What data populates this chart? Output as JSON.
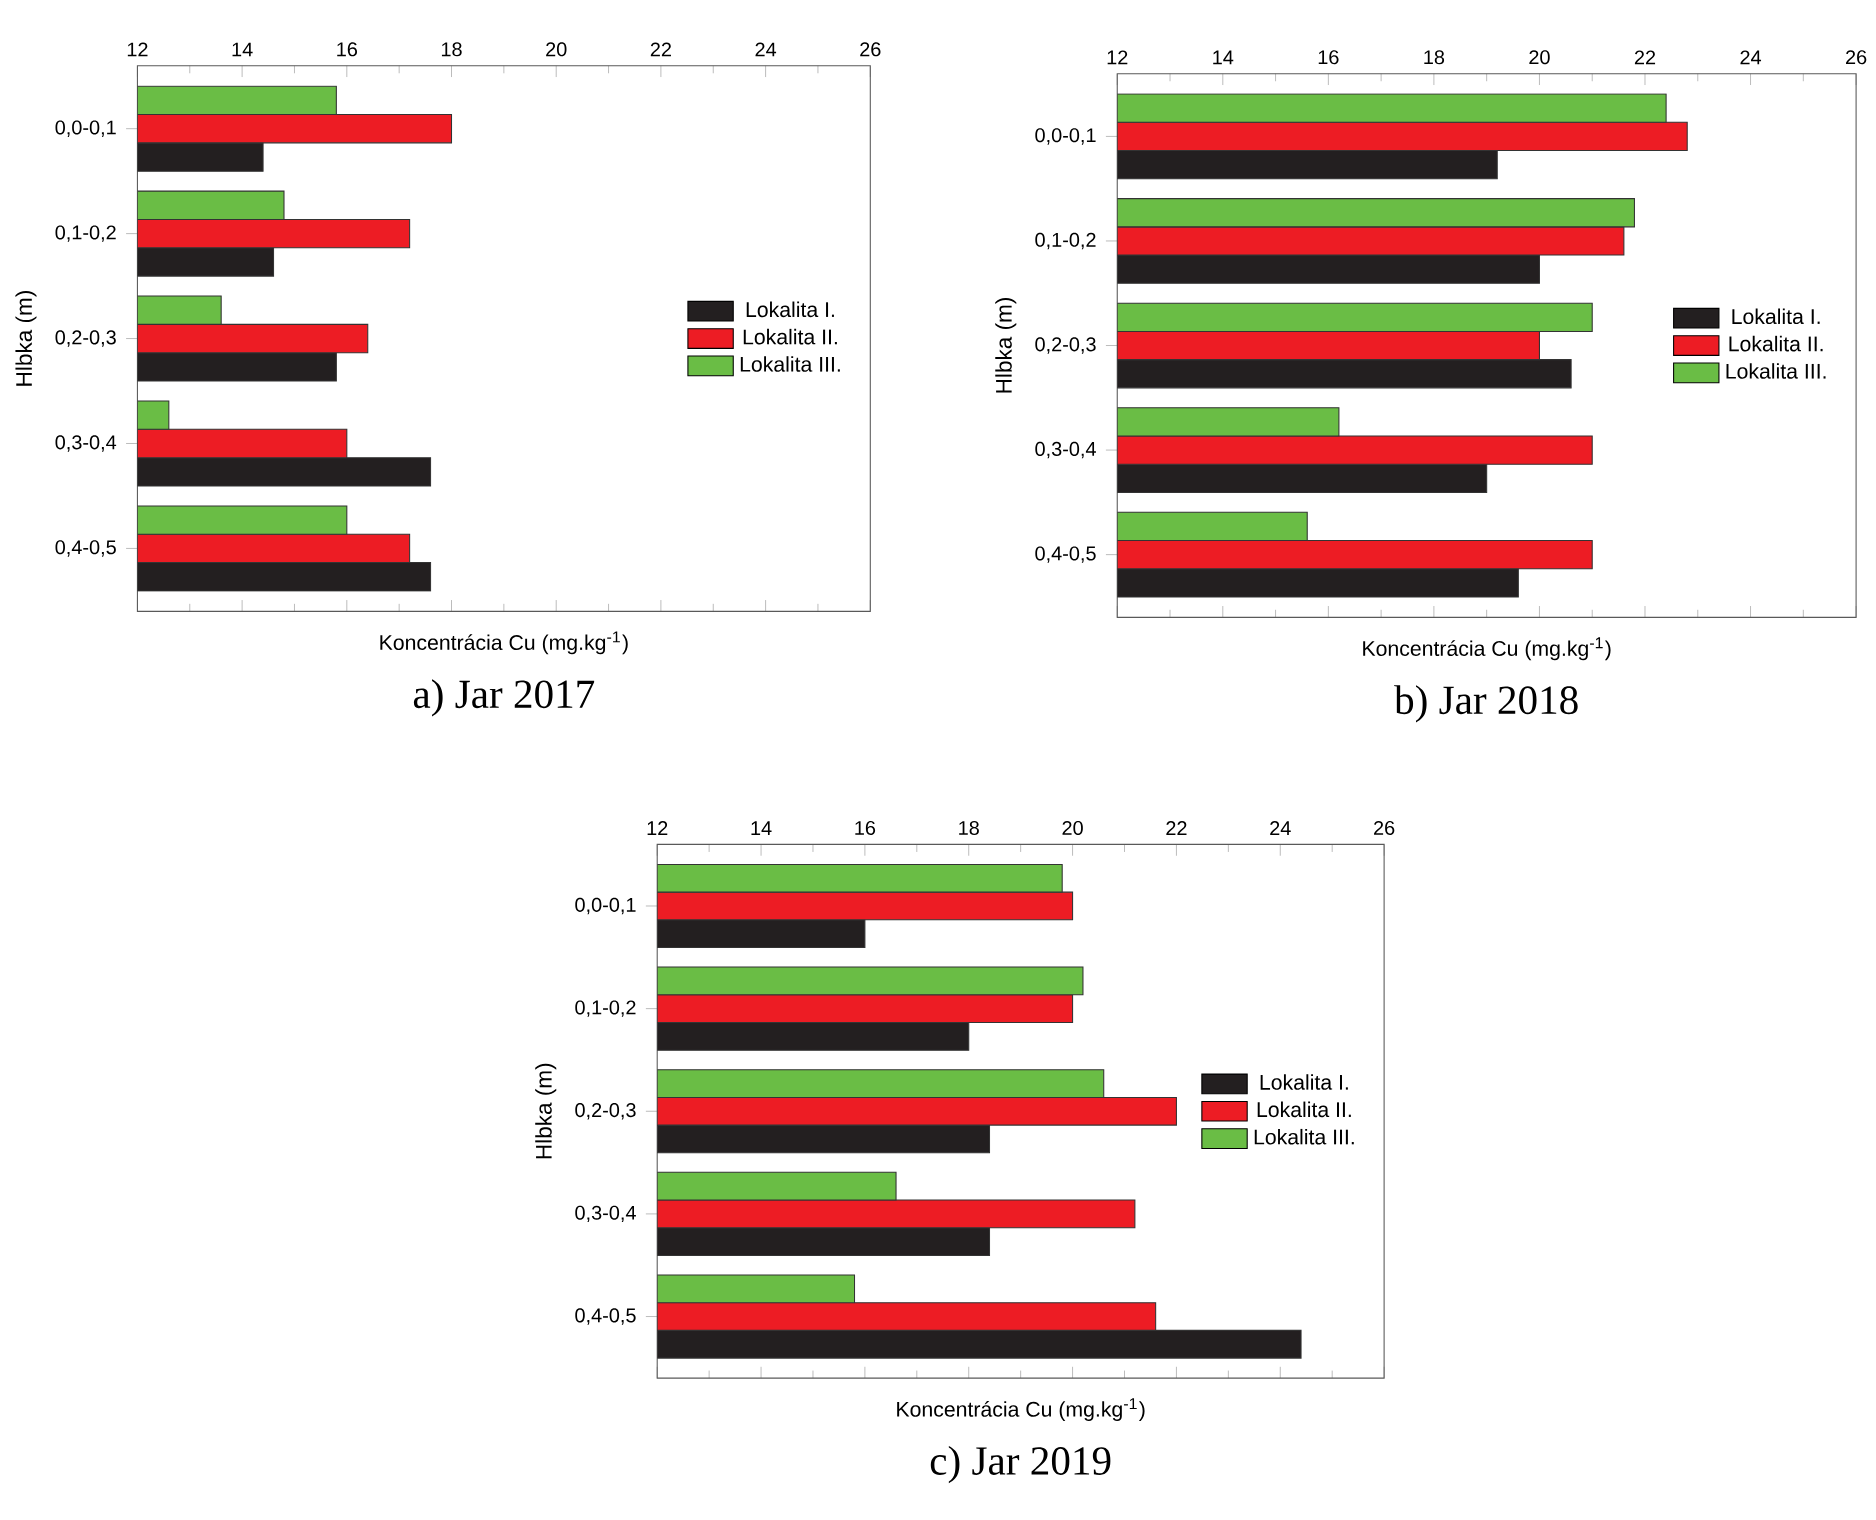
{
  "chart_data": [
    {
      "type": "bar",
      "orientation": "horizontal",
      "title": "a) Jar 2017",
      "xlabel": "Koncentrácia Cu (mg.kg$^{-1}$)",
      "ylabel": "Hlbka (m)",
      "categories": [
        "0,0-0,1",
        "0,1-0,2",
        "0,2-0,3",
        "0,3-0,4",
        "0,4-0,5"
      ],
      "xlim": [
        12,
        26
      ],
      "xticks": [
        12,
        14,
        16,
        18,
        20,
        22,
        24,
        26
      ],
      "legend": "right",
      "series": [
        {
          "name": "Lokalita I.",
          "color": "#231f20",
          "values": [
            14.4,
            14.6,
            15.8,
            17.6,
            17.6
          ]
        },
        {
          "name": "Lokalita II.",
          "color": "#ed1c24",
          "values": [
            18.0,
            17.2,
            16.4,
            16.0,
            17.2
          ]
        },
        {
          "name": "Lokalita III.",
          "color": "#6abd45",
          "values": [
            15.8,
            14.8,
            13.6,
            12.6,
            16.0
          ]
        }
      ]
    },
    {
      "type": "bar",
      "orientation": "horizontal",
      "title": "b) Jar 2018",
      "xlabel": "Koncentrácia Cu (mg.kg$^{-1}$)",
      "ylabel": "Hlbka (m)",
      "categories": [
        "0,0-0,1",
        "0,1-0,2",
        "0,2-0,3",
        "0,3-0,4",
        "0,4-0,5"
      ],
      "xlim": [
        12,
        26
      ],
      "xticks": [
        12,
        14,
        16,
        18,
        20,
        22,
        24,
        26
      ],
      "legend": "right",
      "series": [
        {
          "name": "Lokalita I.",
          "color": "#231f20",
          "values": [
            19.2,
            20.0,
            20.6,
            19.0,
            19.6
          ]
        },
        {
          "name": "Lokalita II.",
          "color": "#ed1c24",
          "values": [
            22.8,
            21.6,
            20.0,
            21.0,
            21.0
          ]
        },
        {
          "name": "Lokalita III.",
          "color": "#6abd45",
          "values": [
            22.4,
            21.8,
            21.0,
            16.2,
            15.6
          ]
        }
      ]
    },
    {
      "type": "bar",
      "orientation": "horizontal",
      "title": "c) Jar 2019",
      "xlabel": "Koncentrácia Cu (mg.kg$^{-1}$)",
      "ylabel": "Hlbka (m)",
      "categories": [
        "0,0-0,1",
        "0,1-0,2",
        "0,2-0,3",
        "0,3-0,4",
        "0,4-0,5"
      ],
      "xlim": [
        12,
        26
      ],
      "xticks": [
        12,
        14,
        16,
        18,
        20,
        22,
        24,
        26
      ],
      "legend": "right",
      "series": [
        {
          "name": "Lokalita I.",
          "color": "#231f20",
          "values": [
            16.0,
            18.0,
            18.4,
            18.4,
            24.4
          ]
        },
        {
          "name": "Lokalita II.",
          "color": "#ed1c24",
          "values": [
            20.0,
            20.0,
            22.0,
            21.2,
            21.6
          ]
        },
        {
          "name": "Lokalita III.",
          "color": "#6abd45",
          "values": [
            19.8,
            20.2,
            20.6,
            16.6,
            15.8
          ]
        }
      ]
    }
  ]
}
